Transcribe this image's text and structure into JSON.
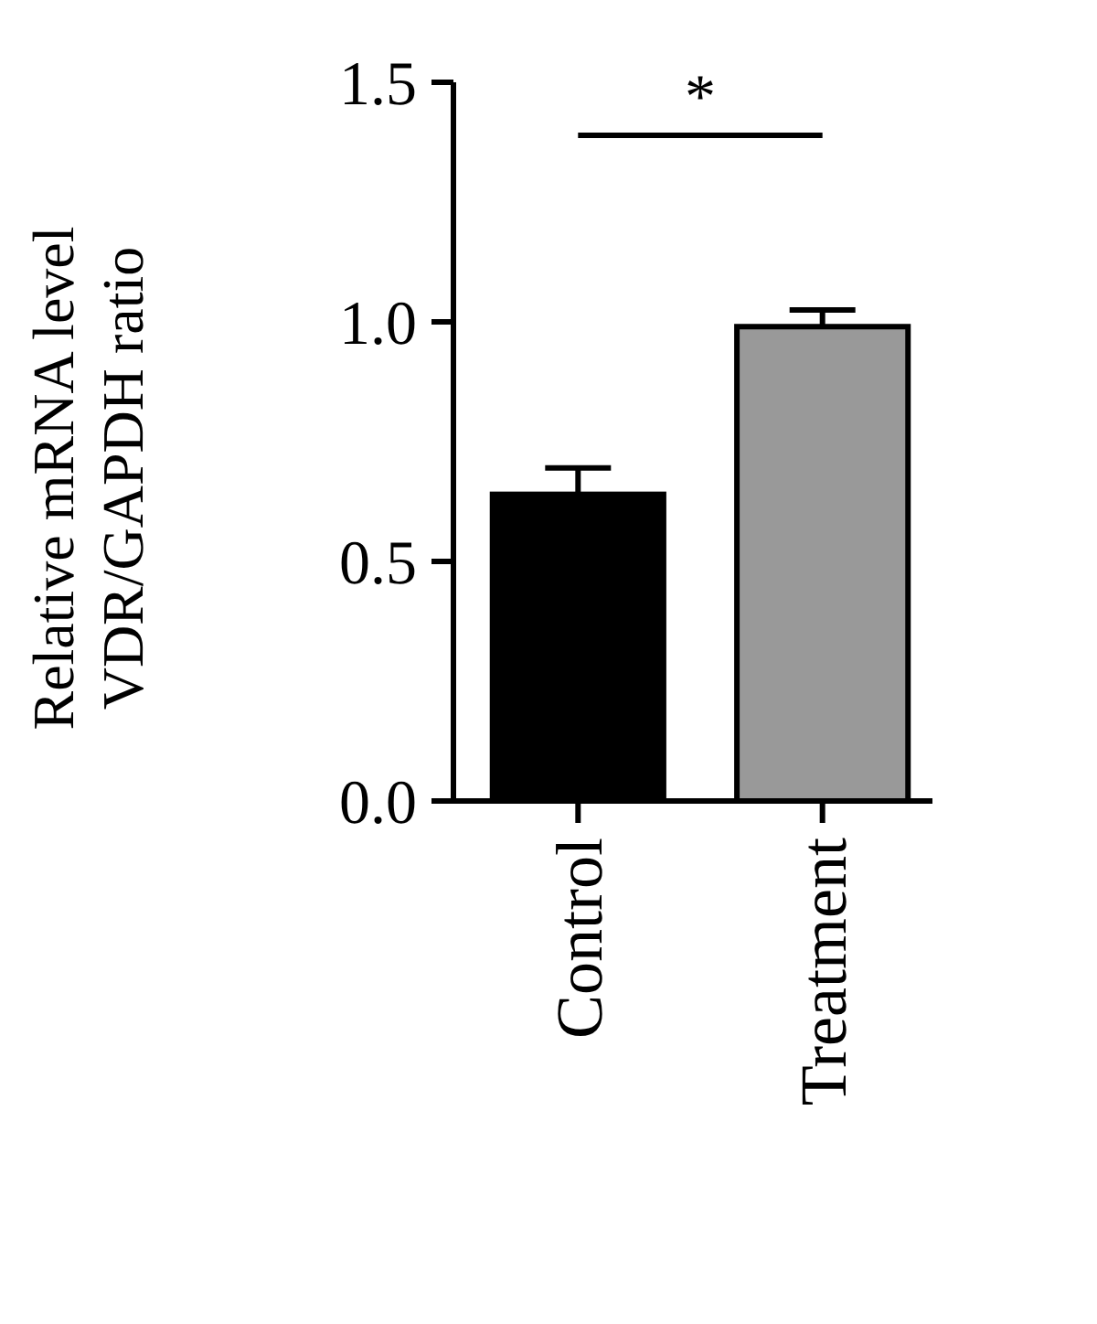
{
  "chart_data": {
    "type": "bar",
    "ylabel": "Relative mRNA level\nVDR/GAPDH ratio",
    "categories": [
      "Control",
      "Treatment"
    ],
    "values": [
      0.64,
      0.99
    ],
    "colors": [
      "#000000",
      "#999999"
    ],
    "errors": [
      0.055,
      0.035
    ],
    "ylim": [
      0,
      1.5
    ],
    "yticks": [
      {
        "value": 0,
        "label": "0.0"
      },
      {
        "value": 0.5,
        "label": "0.5"
      },
      {
        "value": 1,
        "label": "1.0"
      },
      {
        "value": 1.5,
        "label": "1.5"
      }
    ],
    "grid": false,
    "annotations": [
      "*"
    ]
  }
}
